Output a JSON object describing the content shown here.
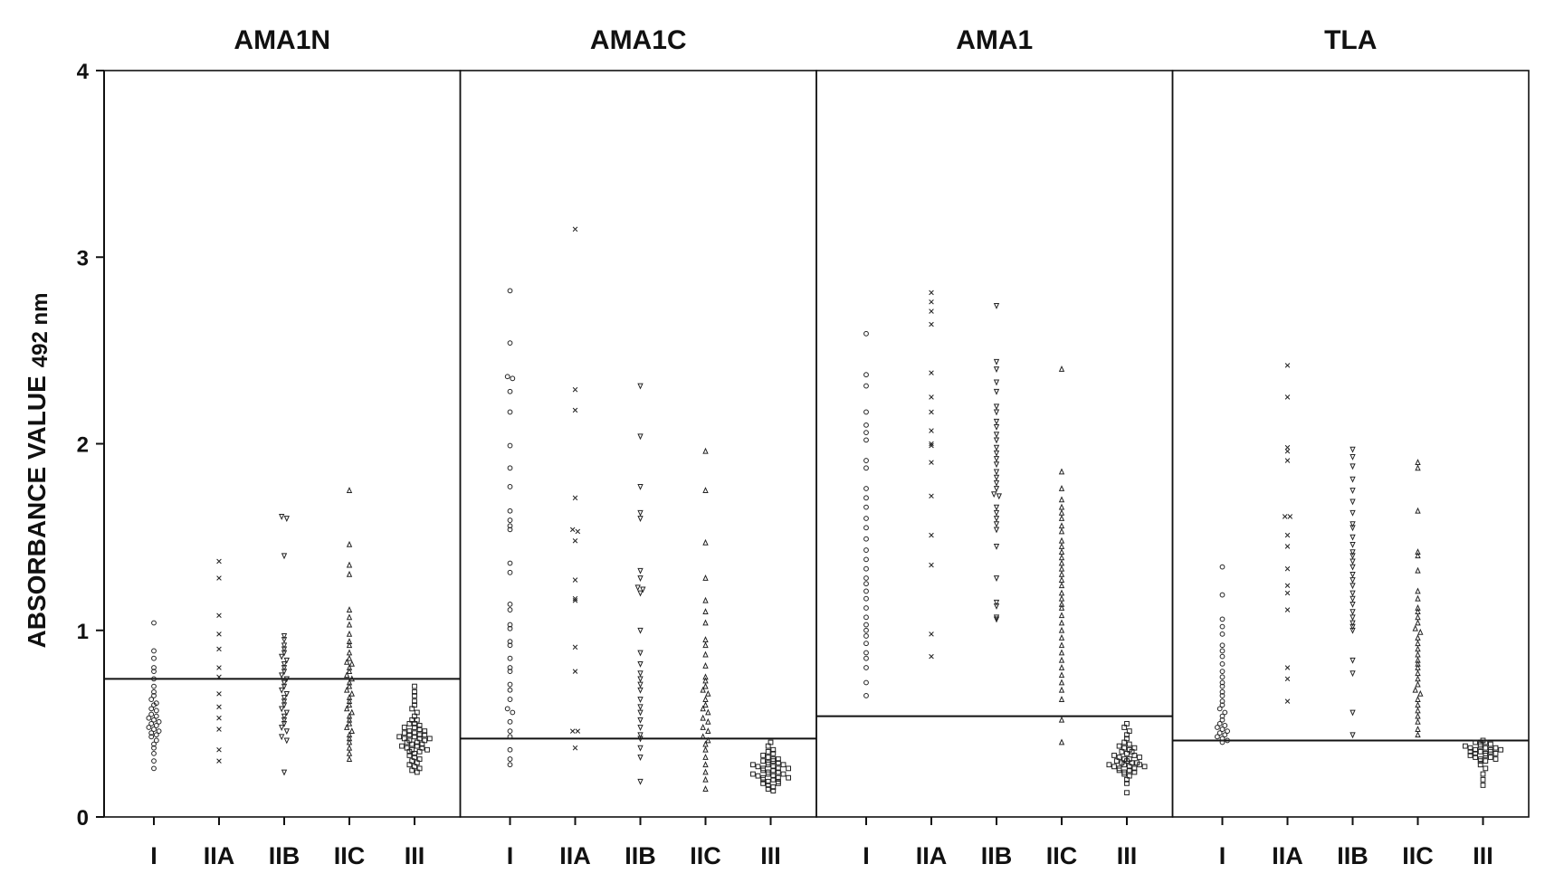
{
  "chart_data": {
    "type": "scatter",
    "subtype": "dot-strip-plot",
    "ylabel": "ABSORBANCE VALUE",
    "ylabel_suffix": "492 nm",
    "ylim": [
      0,
      4
    ],
    "yticks": [
      0,
      1,
      2,
      3,
      4
    ],
    "categories": [
      "I",
      "IIA",
      "IIB",
      "IIC",
      "III"
    ],
    "marker_by_category": {
      "I": "circle",
      "IIA": "cross",
      "IIB": "triangle-down",
      "IIC": "triangle-up",
      "III": "square"
    },
    "panels": [
      {
        "title": "AMA1N",
        "cutoff": 0.74,
        "series": [
          {
            "name": "I",
            "values": [
              1.04,
              0.89,
              0.85,
              0.8,
              0.78,
              0.74,
              0.7,
              0.67,
              0.65,
              0.63,
              0.61,
              0.6,
              0.58,
              0.57,
              0.55,
              0.54,
              0.53,
              0.52,
              0.51,
              0.5,
              0.49,
              0.48,
              0.47,
              0.46,
              0.45,
              0.44,
              0.43,
              0.41,
              0.39,
              0.37,
              0.34,
              0.3,
              0.26
            ]
          },
          {
            "name": "IIA",
            "values": [
              1.37,
              1.28,
              1.08,
              0.98,
              0.9,
              0.8,
              0.75,
              0.66,
              0.59,
              0.53,
              0.47,
              0.36,
              0.3
            ]
          },
          {
            "name": "IIB",
            "values": [
              1.61,
              1.6,
              1.4,
              0.97,
              0.95,
              0.92,
              0.9,
              0.88,
              0.86,
              0.84,
              0.82,
              0.8,
              0.78,
              0.76,
              0.74,
              0.72,
              0.7,
              0.68,
              0.66,
              0.64,
              0.62,
              0.6,
              0.58,
              0.56,
              0.54,
              0.52,
              0.5,
              0.48,
              0.46,
              0.43,
              0.41,
              0.24
            ]
          },
          {
            "name": "IIC",
            "values": [
              1.75,
              1.46,
              1.35,
              1.3,
              1.11,
              1.07,
              1.03,
              0.98,
              0.94,
              0.92,
              0.88,
              0.85,
              0.83,
              0.82,
              0.8,
              0.78,
              0.76,
              0.74,
              0.72,
              0.7,
              0.68,
              0.66,
              0.64,
              0.62,
              0.6,
              0.58,
              0.56,
              0.54,
              0.52,
              0.5,
              0.48,
              0.46,
              0.44,
              0.42,
              0.4,
              0.37,
              0.34,
              0.31
            ]
          },
          {
            "name": "III",
            "values": [
              0.7,
              0.67,
              0.65,
              0.62,
              0.6,
              0.58,
              0.56,
              0.54,
              0.52,
              0.5,
              0.48,
              0.46,
              0.45,
              0.44,
              0.43,
              0.42,
              0.41,
              0.4,
              0.39,
              0.38,
              0.37,
              0.36,
              0.35,
              0.34,
              0.33,
              0.32,
              0.31,
              0.3,
              0.29,
              0.28,
              0.27,
              0.26,
              0.25,
              0.24,
              0.45,
              0.44,
              0.43,
              0.42,
              0.41,
              0.4,
              0.39,
              0.38,
              0.37,
              0.36,
              0.35,
              0.48,
              0.47,
              0.5,
              0.49,
              0.52,
              0.46,
              0.44,
              0.42
            ]
          }
        ]
      },
      {
        "title": "AMA1C",
        "cutoff": 0.42,
        "series": [
          {
            "name": "I",
            "values": [
              2.82,
              2.54,
              2.36,
              2.35,
              2.28,
              2.17,
              1.99,
              1.87,
              1.77,
              1.64,
              1.59,
              1.56,
              1.54,
              1.36,
              1.31,
              1.14,
              1.11,
              1.03,
              1.01,
              0.94,
              0.92,
              0.85,
              0.8,
              0.78,
              0.71,
              0.68,
              0.63,
              0.58,
              0.56,
              0.51,
              0.46,
              0.43,
              0.36,
              0.31,
              0.28
            ]
          },
          {
            "name": "IIA",
            "values": [
              3.15,
              2.29,
              2.18,
              1.71,
              1.54,
              1.53,
              1.48,
              1.27,
              1.17,
              1.16,
              0.91,
              0.78,
              0.46,
              0.46,
              0.37
            ]
          },
          {
            "name": "IIB",
            "values": [
              2.31,
              2.04,
              1.77,
              1.63,
              1.6,
              1.32,
              1.28,
              1.23,
              1.22,
              1.2,
              1.0,
              0.88,
              0.82,
              0.77,
              0.74,
              0.71,
              0.68,
              0.63,
              0.59,
              0.56,
              0.52,
              0.48,
              0.44,
              0.42,
              0.37,
              0.32,
              0.19
            ]
          },
          {
            "name": "IIC",
            "values": [
              1.96,
              1.75,
              1.47,
              1.28,
              1.16,
              1.1,
              1.04,
              0.95,
              0.92,
              0.87,
              0.81,
              0.75,
              0.73,
              0.7,
              0.68,
              0.66,
              0.63,
              0.6,
              0.58,
              0.56,
              0.53,
              0.51,
              0.48,
              0.46,
              0.43,
              0.41,
              0.39,
              0.36,
              0.32,
              0.28,
              0.24,
              0.2,
              0.15
            ]
          },
          {
            "name": "III",
            "values": [
              0.4,
              0.38,
              0.36,
              0.35,
              0.34,
              0.33,
              0.32,
              0.31,
              0.3,
              0.29,
              0.28,
              0.27,
              0.26,
              0.25,
              0.24,
              0.23,
              0.22,
              0.21,
              0.2,
              0.19,
              0.18,
              0.17,
              0.16,
              0.15,
              0.14,
              0.3,
              0.29,
              0.28,
              0.27,
              0.26,
              0.25,
              0.24,
              0.23,
              0.22,
              0.21,
              0.2,
              0.19,
              0.18,
              0.31,
              0.28,
              0.26,
              0.23,
              0.21
            ]
          }
        ]
      },
      {
        "title": "AMA1",
        "cutoff": 0.54,
        "series": [
          {
            "name": "I",
            "values": [
              2.59,
              2.37,
              2.31,
              2.17,
              2.1,
              2.06,
              2.02,
              1.91,
              1.87,
              1.76,
              1.71,
              1.66,
              1.6,
              1.55,
              1.49,
              1.43,
              1.38,
              1.33,
              1.28,
              1.25,
              1.21,
              1.17,
              1.12,
              1.07,
              1.03,
              1.0,
              0.97,
              0.93,
              0.88,
              0.85,
              0.8,
              0.72,
              0.65
            ]
          },
          {
            "name": "IIA",
            "values": [
              2.81,
              2.76,
              2.71,
              2.64,
              2.38,
              2.25,
              2.17,
              2.07,
              2.0,
              1.99,
              1.9,
              1.72,
              1.51,
              1.35,
              0.98,
              0.86
            ]
          },
          {
            "name": "IIB",
            "values": [
              2.74,
              2.44,
              2.4,
              2.33,
              2.28,
              2.2,
              2.17,
              2.12,
              2.09,
              2.05,
              2.02,
              1.98,
              1.95,
              1.92,
              1.89,
              1.85,
              1.82,
              1.79,
              1.76,
              1.73,
              1.72,
              1.66,
              1.63,
              1.6,
              1.57,
              1.54,
              1.45,
              1.28,
              1.15,
              1.13,
              1.07,
              1.06
            ]
          },
          {
            "name": "IIC",
            "values": [
              2.4,
              1.85,
              1.76,
              1.7,
              1.66,
              1.63,
              1.6,
              1.56,
              1.53,
              1.48,
              1.45,
              1.42,
              1.39,
              1.36,
              1.33,
              1.3,
              1.27,
              1.24,
              1.2,
              1.17,
              1.14,
              1.12,
              1.08,
              1.04,
              1.0,
              0.96,
              0.92,
              0.88,
              0.84,
              0.8,
              0.76,
              0.72,
              0.68,
              0.63,
              0.52,
              0.4
            ]
          },
          {
            "name": "III",
            "values": [
              0.5,
              0.48,
              0.46,
              0.44,
              0.42,
              0.4,
              0.39,
              0.38,
              0.37,
              0.36,
              0.35,
              0.34,
              0.33,
              0.32,
              0.31,
              0.3,
              0.29,
              0.28,
              0.27,
              0.26,
              0.25,
              0.24,
              0.23,
              0.22,
              0.2,
              0.18,
              0.13,
              0.3,
              0.29,
              0.28,
              0.27,
              0.26,
              0.31,
              0.33,
              0.35,
              0.37,
              0.28,
              0.27,
              0.25,
              0.24,
              0.29,
              0.32
            ]
          }
        ]
      },
      {
        "title": "TLA",
        "cutoff": 0.41,
        "series": [
          {
            "name": "I",
            "values": [
              1.34,
              1.19,
              1.06,
              1.02,
              0.98,
              0.92,
              0.89,
              0.86,
              0.82,
              0.78,
              0.75,
              0.72,
              0.7,
              0.67,
              0.65,
              0.62,
              0.6,
              0.58,
              0.56,
              0.54,
              0.52,
              0.5,
              0.49,
              0.48,
              0.47,
              0.46,
              0.45,
              0.44,
              0.43,
              0.42,
              0.41,
              0.4
            ]
          },
          {
            "name": "IIA",
            "values": [
              2.42,
              2.25,
              1.98,
              1.96,
              1.91,
              1.61,
              1.61,
              1.51,
              1.45,
              1.33,
              1.24,
              1.2,
              1.11,
              0.8,
              0.74,
              0.62
            ]
          },
          {
            "name": "IIB",
            "values": [
              1.97,
              1.93,
              1.88,
              1.81,
              1.75,
              1.69,
              1.63,
              1.57,
              1.55,
              1.5,
              1.46,
              1.42,
              1.4,
              1.37,
              1.34,
              1.3,
              1.27,
              1.24,
              1.2,
              1.17,
              1.14,
              1.1,
              1.07,
              1.04,
              1.02,
              1.0,
              0.84,
              0.77,
              0.56,
              0.44
            ]
          },
          {
            "name": "IIC",
            "values": [
              1.9,
              1.87,
              1.64,
              1.42,
              1.4,
              1.32,
              1.21,
              1.17,
              1.12,
              1.1,
              1.07,
              1.04,
              1.01,
              0.99,
              0.96,
              0.93,
              0.9,
              0.87,
              0.84,
              0.82,
              0.8,
              0.77,
              0.74,
              0.71,
              0.68,
              0.66,
              0.63,
              0.6,
              0.57,
              0.54,
              0.51,
              0.47,
              0.44
            ]
          },
          {
            "name": "III",
            "values": [
              0.41,
              0.4,
              0.39,
              0.38,
              0.37,
              0.36,
              0.35,
              0.34,
              0.33,
              0.32,
              0.31,
              0.3,
              0.28,
              0.26,
              0.23,
              0.2,
              0.17,
              0.4,
              0.39,
              0.38,
              0.37,
              0.36,
              0.35,
              0.34,
              0.33,
              0.32,
              0.31,
              0.3,
              0.37,
              0.36,
              0.35,
              0.34
            ]
          }
        ]
      }
    ]
  }
}
